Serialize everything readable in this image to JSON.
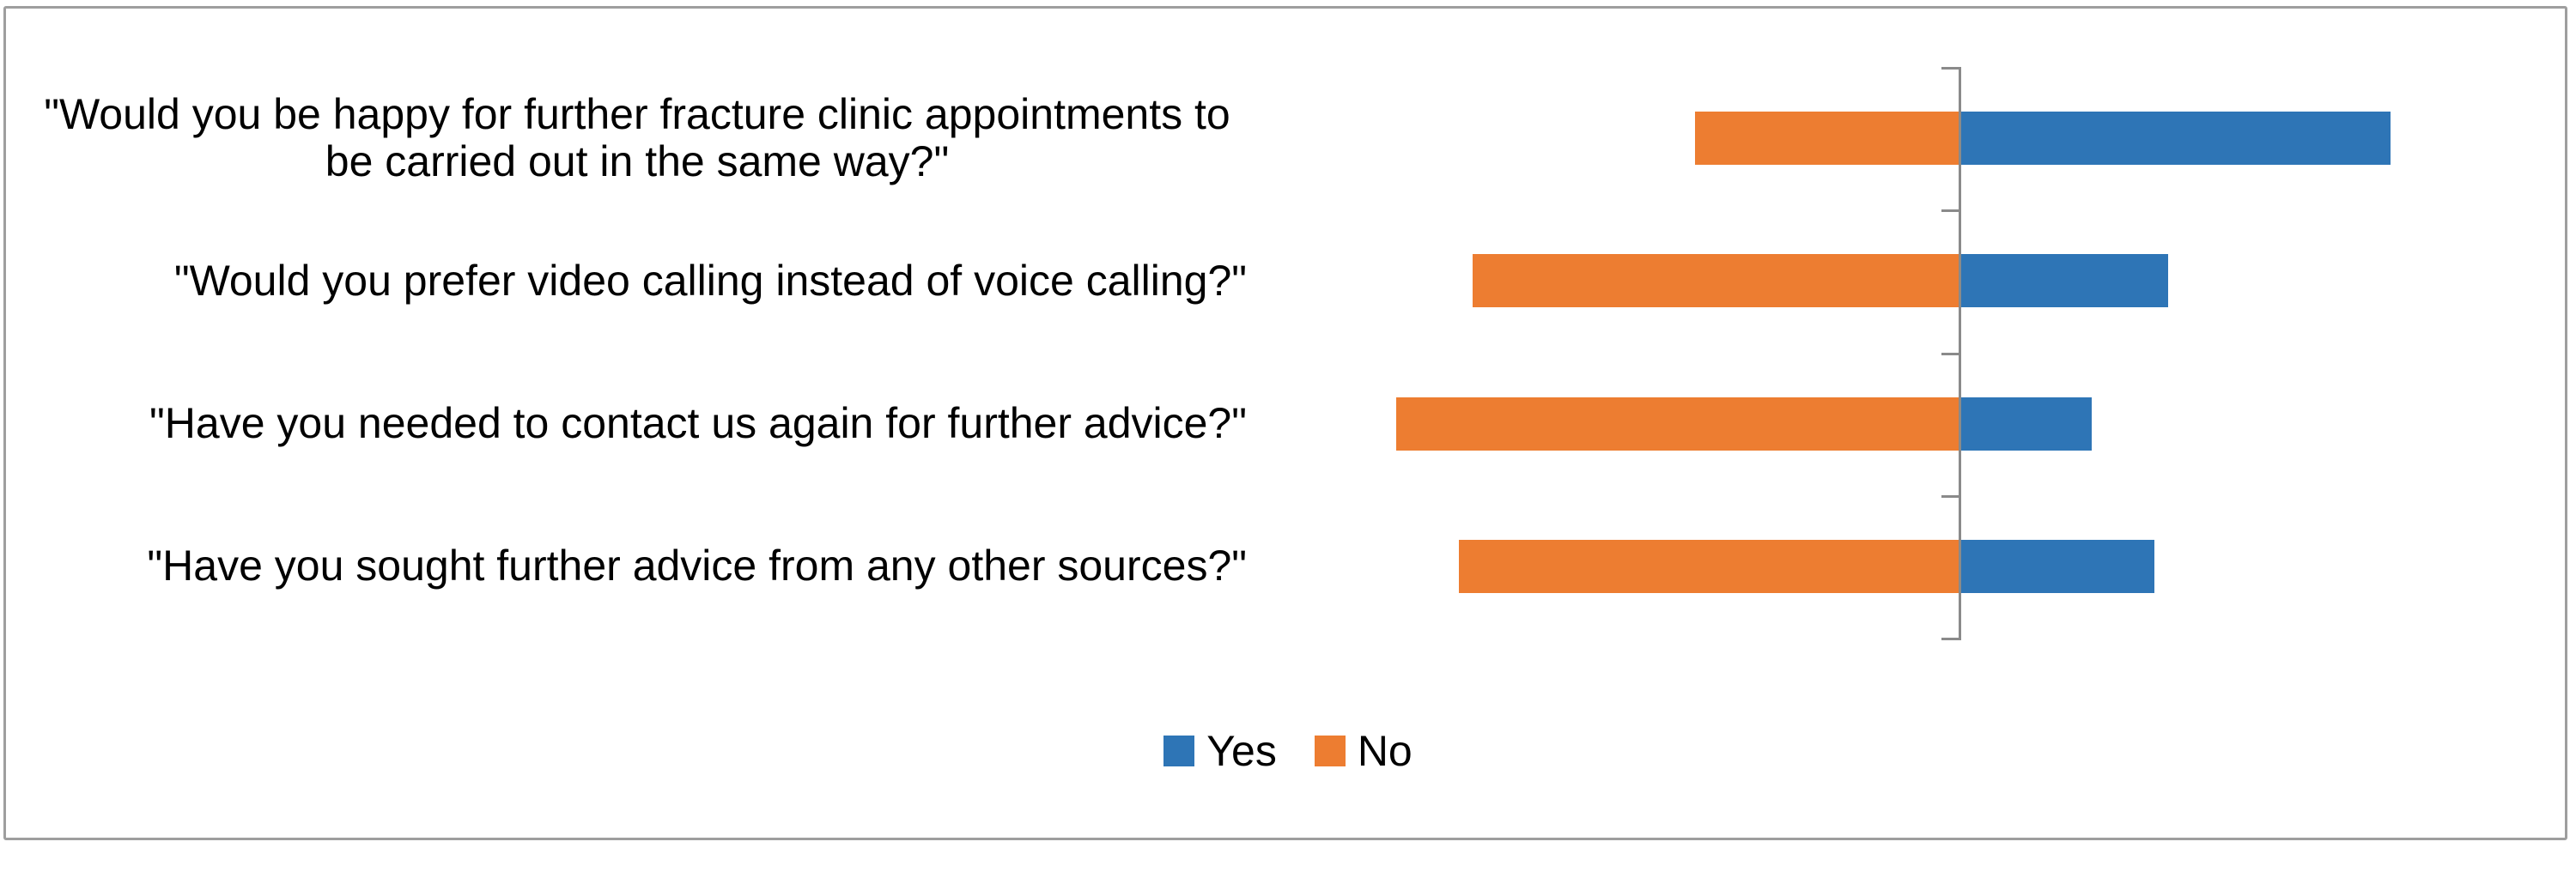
{
  "chart_data": {
    "type": "bar",
    "orientation": "horizontal-diverging",
    "title": "",
    "xlabel": "",
    "ylabel": "",
    "unit": "percent (estimated from bar lengths; no value labels shown)",
    "categories": [
      "\"Would you be happy for further fracture clinic appointments to be carried out in the same way?\"",
      "\"Would you prefer video calling instead of voice calling?\"",
      "\"Have you needed to contact us again for further advice?\"",
      "\"Have you sought further advice from any other sources?\""
    ],
    "series": [
      {
        "name": "Yes",
        "color": "#2E75B6",
        "direction": "right",
        "values": [
          62,
          30,
          19,
          28
        ]
      },
      {
        "name": "No",
        "color": "#ED7D31",
        "direction": "left",
        "values": [
          38,
          70,
          81,
          72
        ]
      }
    ],
    "axis": {
      "baseline_value": 0,
      "gridlines": false,
      "tick_labels_visible": false,
      "tick_count": 5,
      "axis_color": "#8A8A8A"
    },
    "legend_position": "bottom-center"
  },
  "figure": {
    "background": "#FFFFFF",
    "border_color": "#9E9E9E",
    "text_color": "#000000"
  }
}
